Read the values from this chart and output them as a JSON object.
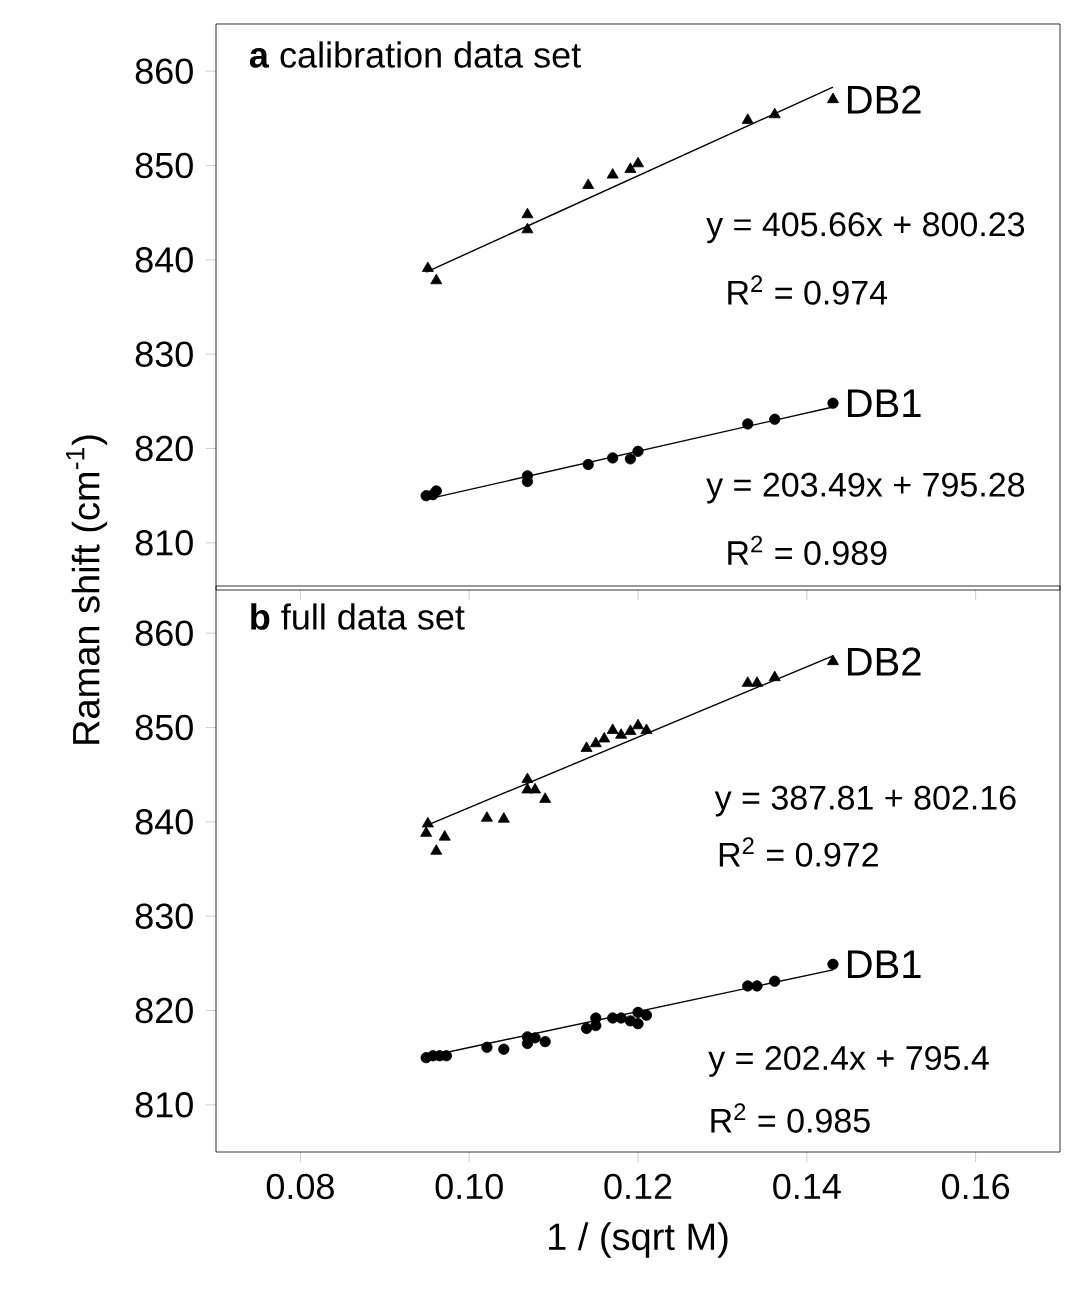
{
  "chart_data": [
    {
      "type": "scatter",
      "title": "**a** calibration data set",
      "ylabel": "Raman shift (cm$^{-1}$)",
      "tick_labels": "y",
      "xlim": [
        0.07,
        0.17
      ],
      "xticks": [
        0.08,
        0.1,
        0.12,
        0.14,
        0.16
      ],
      "ylim": [
        805,
        865
      ],
      "yticks": [
        810,
        820,
        830,
        840,
        850,
        860
      ],
      "annotations": [
        "y = 405.66x + 800.23",
        "R$^{2}$ = 0.974",
        "y = 203.49x + 795.28",
        "R$^{2}$ = 0.989"
      ],
      "series": [
        {
          "name": "DB2",
          "type": "scatter",
          "marker": "triangle",
          "color": "#000000",
          "x": [
            0.0951,
            0.0961,
            0.1069,
            0.1069,
            0.1141,
            0.117,
            0.1191,
            0.12,
            0.133,
            0.1362,
            0.1431
          ],
          "values": [
            839.1,
            837.8,
            844.8,
            843.2,
            847.9,
            849.0,
            849.6,
            850.2,
            854.8,
            855.4,
            857.0
          ]
        },
        {
          "name": "DB1",
          "type": "scatter",
          "marker": "circle",
          "color": "#000000",
          "x": [
            0.0949,
            0.0957,
            0.0961,
            0.1069,
            0.1069,
            0.1141,
            0.117,
            0.1191,
            0.12,
            0.133,
            0.1362,
            0.1431
          ],
          "values": [
            815.0,
            815.1,
            815.5,
            817.1,
            816.5,
            818.3,
            819.0,
            818.9,
            819.7,
            822.6,
            823.1,
            824.8
          ]
        },
        {
          "type": "line",
          "marker": "none",
          "color": "#000000",
          "x": [
            0.0949,
            0.1431
          ],
          "values": [
            838.7,
            858.3
          ]
        },
        {
          "type": "line",
          "marker": "none",
          "color": "#000000",
          "x": [
            0.0949,
            0.1431
          ],
          "values": [
            814.6,
            824.4
          ]
        }
      ]
    },
    {
      "type": "scatter",
      "title": "**b** full data set",
      "xlabel": "1 / (sqrt M)",
      "xlim": [
        0.07,
        0.17
      ],
      "xticks": [
        {
          "value": 0.08,
          "label": "0.08"
        },
        {
          "value": 0.1,
          "label": "0.10"
        },
        {
          "value": 0.12,
          "label": "0.12"
        },
        {
          "value": 0.14,
          "label": "0.14"
        },
        {
          "value": 0.16,
          "label": "0.16"
        }
      ],
      "ylim": [
        805,
        865
      ],
      "yticks": [
        810,
        820,
        830,
        840,
        850,
        860
      ],
      "annotations": [
        "y = 387.81 + 802.16",
        "R$^{2}$ = 0.972",
        "y = 202.4x + 795.4",
        "R$^{2}$ = 0.985"
      ],
      "series": [
        {
          "name": "DB2",
          "type": "scatter",
          "marker": "triangle",
          "color": "#000000",
          "x": [
            0.0951,
            0.0949,
            0.0961,
            0.0971,
            0.1021,
            0.1041,
            0.1069,
            0.1069,
            0.1078,
            0.109,
            0.1139,
            0.115,
            0.116,
            0.117,
            0.118,
            0.1191,
            0.12,
            0.121,
            0.133,
            0.1341,
            0.1362,
            0.1431
          ],
          "values": [
            839.8,
            838.8,
            836.9,
            838.4,
            840.4,
            840.3,
            844.5,
            843.4,
            843.4,
            842.4,
            847.8,
            848.3,
            848.8,
            849.7,
            849.2,
            849.6,
            850.2,
            849.7,
            854.7,
            854.7,
            855.3,
            857.0
          ]
        },
        {
          "name": "DB1",
          "type": "scatter",
          "marker": "circle",
          "color": "#000000",
          "x": [
            0.0949,
            0.0957,
            0.0965,
            0.0973,
            0.1021,
            0.1041,
            0.1069,
            0.1069,
            0.1078,
            0.109,
            0.1139,
            0.115,
            0.115,
            0.117,
            0.118,
            0.1191,
            0.12,
            0.12,
            0.121,
            0.133,
            0.1341,
            0.1362,
            0.1431
          ],
          "values": [
            815.0,
            815.2,
            815.2,
            815.2,
            816.1,
            815.9,
            817.2,
            816.5,
            817.1,
            816.7,
            818.1,
            819.2,
            818.4,
            819.2,
            819.2,
            818.9,
            819.8,
            818.6,
            819.5,
            822.6,
            822.6,
            823.1,
            824.9
          ]
        },
        {
          "type": "line",
          "marker": "none",
          "color": "#000000",
          "x": [
            0.0949,
            0.1431
          ],
          "values": [
            839.6,
            857.6
          ]
        },
        {
          "type": "line",
          "marker": "none",
          "color": "#000000",
          "x": [
            0.0949,
            0.1431
          ],
          "values": [
            815.1,
            824.3
          ]
        }
      ]
    }
  ]
}
